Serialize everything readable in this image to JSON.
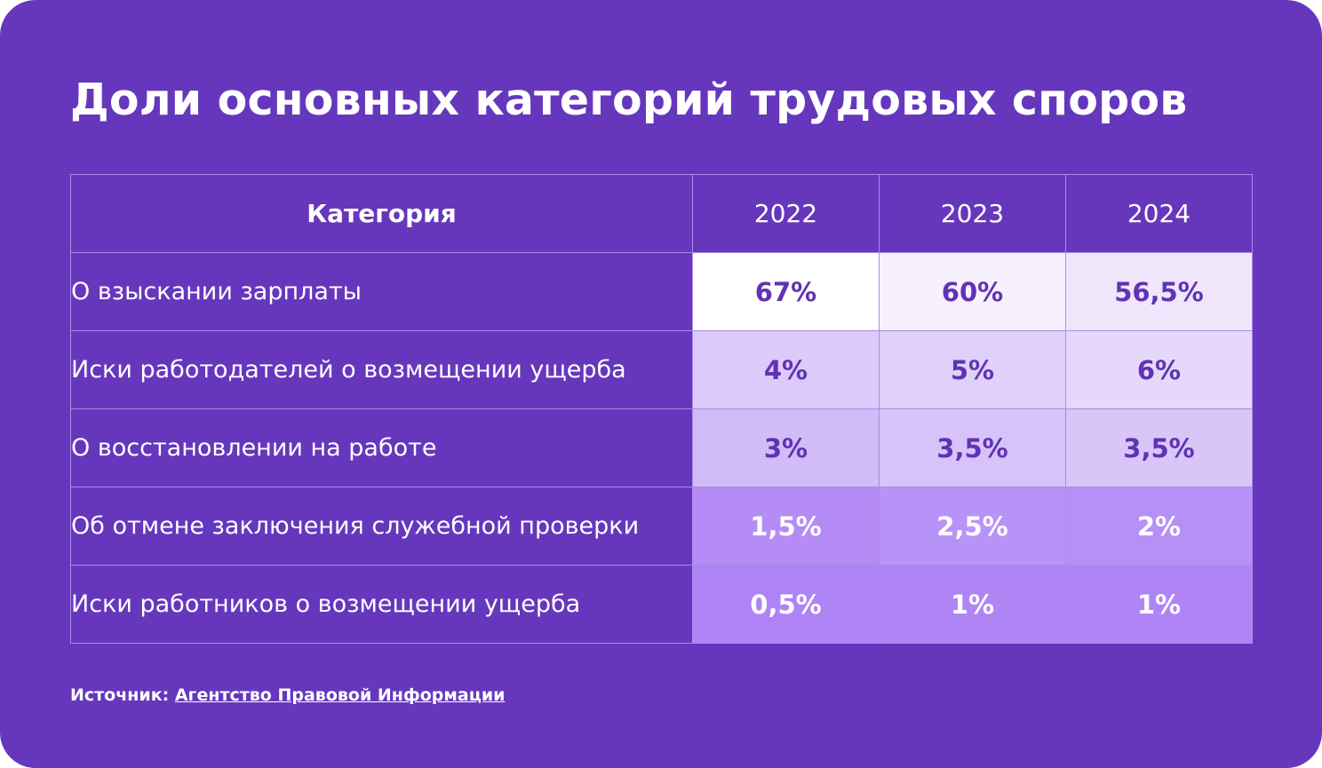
{
  "chart_data": {
    "type": "table",
    "title": "Доли основных категорий трудовых споров",
    "columns": [
      "Категория",
      "2022",
      "2023",
      "2024"
    ],
    "rows": [
      {
        "category": "О взыскании зарплаты",
        "values": [
          "67%",
          "60%",
          "56,5%"
        ],
        "shares": [
          67,
          60,
          56.5
        ]
      },
      {
        "category": "Иски работодателей о возмещении ущерба",
        "values": [
          "4%",
          "5%",
          "6%"
        ],
        "shares": [
          4,
          5,
          6
        ]
      },
      {
        "category": "О восстановлении на работе",
        "values": [
          "3%",
          "3,5%",
          "3,5%"
        ],
        "shares": [
          3,
          3.5,
          3.5
        ]
      },
      {
        "category": "Об отмене заключения служебной проверки",
        "values": [
          "1,5%",
          "2,5%",
          "2%"
        ],
        "shares": [
          1.5,
          2.5,
          2
        ]
      },
      {
        "category": "Иски работников о возмещении ущерба",
        "values": [
          "0,5%",
          "1%",
          "1%"
        ],
        "shares": [
          0.5,
          1,
          1
        ]
      }
    ],
    "cell_colors": [
      [
        "#ffffff",
        "#f6f1fd",
        "#efe6fc"
      ],
      [
        "#dccbfa",
        "#e0d1fa",
        "#e6d8fb"
      ],
      [
        "#d1bcf8",
        "#d6c3f9",
        "#d8c6f9"
      ],
      [
        "#b58cf6",
        "#b893f7",
        "#b690f6"
      ],
      [
        "#ae83f5",
        "#af85f5",
        "#af85f5"
      ]
    ],
    "text_colors": [
      [
        "#6032b4",
        "#6032b4",
        "#6032b4"
      ],
      [
        "#6032b4",
        "#6032b4",
        "#6032b4"
      ],
      [
        "#6032b4",
        "#6032b4",
        "#6032b4"
      ],
      [
        "#ffffff",
        "#ffffff",
        "#ffffff"
      ],
      [
        "#ffffff",
        "#ffffff",
        "#ffffff"
      ]
    ]
  },
  "source": {
    "label": "Источник:",
    "link_text": "Агентство Правовой Информации"
  },
  "colors": {
    "background": "#6637bd",
    "grid": "#a98ae6"
  }
}
